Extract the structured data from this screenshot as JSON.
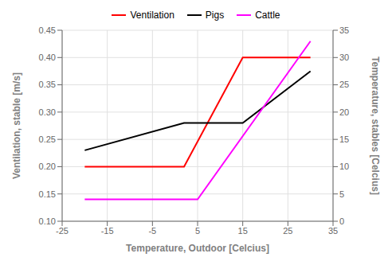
{
  "chart_data": {
    "type": "line",
    "xlabel": "Temperature, Outdoor [Celcius]",
    "ylabel": "Ventilation, stable [m/s]",
    "y2label": "Temperature, stables [Celcius]",
    "series": [
      {
        "name": "Ventilation",
        "color": "#ff0000",
        "x": [
          -20,
          2,
          2,
          15,
          15,
          30
        ],
        "values": [
          0.2,
          0.2,
          0.2,
          0.4,
          0.4,
          0.4
        ]
      },
      {
        "name": "Pigs",
        "color": "#000000",
        "x": [
          -20,
          2,
          15,
          30
        ],
        "values": [
          0.23,
          0.28,
          0.28,
          0.375
        ]
      },
      {
        "name": "Cattle",
        "color": "#ff00ff",
        "x": [
          -20,
          2,
          5,
          30
        ],
        "values": [
          0.14,
          0.14,
          0.14,
          0.43
        ]
      }
    ],
    "xlim": [
      -25,
      35
    ],
    "xticks": [
      -25,
      -15,
      -5,
      5,
      15,
      25,
      35
    ],
    "ylim": [
      0.1,
      0.45
    ],
    "yticks": [
      {
        "value": 0.1,
        "label": "0.10"
      },
      0.15,
      {
        "value": 0.2,
        "label": "0.20"
      },
      0.25,
      {
        "value": 0.3,
        "label": "0.30"
      },
      0.35,
      {
        "value": 0.4,
        "label": "0.40"
      },
      0.45
    ],
    "y2lim": [
      0,
      35
    ],
    "y2ticks": [
      0,
      5,
      10,
      15,
      20,
      25,
      30,
      35
    ],
    "grid": true,
    "legend": "top"
  }
}
